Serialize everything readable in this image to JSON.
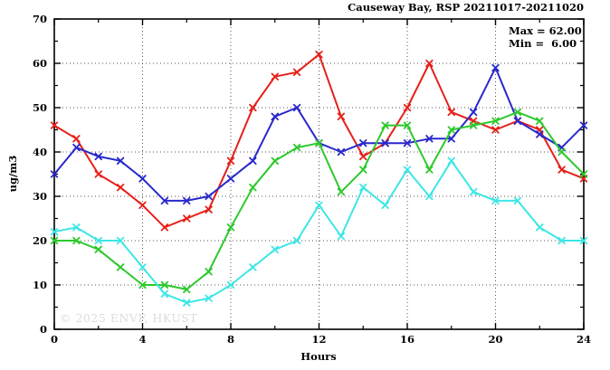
{
  "title": "Causeway Bay, RSP 20211017-20211020",
  "stats": {
    "max_label": "Max = 62.00",
    "min_label": "Min =  6.00"
  },
  "watermark": "© 2025 ENVF, HKUST",
  "chart_data": {
    "type": "line",
    "title": "Causeway Bay, RSP 20211017-20211020",
    "xlabel": "Hours",
    "ylabel": "ug/m3",
    "xlim": [
      0,
      24
    ],
    "ylim": [
      0,
      70
    ],
    "xticks": [
      0,
      4,
      8,
      12,
      16,
      20,
      24
    ],
    "xminorticks": [
      2,
      6,
      10,
      14,
      18,
      22
    ],
    "yticks": [
      0,
      10,
      20,
      30,
      40,
      50,
      60,
      70
    ],
    "yminorticks": [
      5,
      15,
      25,
      35,
      45,
      55,
      65
    ],
    "grid": true,
    "marker": "x",
    "annotations": {
      "max": 62.0,
      "min": 6.0
    },
    "x": [
      0,
      1,
      2,
      3,
      4,
      5,
      6,
      7,
      8,
      9,
      10,
      11,
      12,
      13,
      14,
      15,
      16,
      17,
      18,
      19,
      20,
      21,
      22,
      23,
      24
    ],
    "series": [
      {
        "name": "red",
        "color": "#e62019",
        "values": [
          46,
          43,
          35,
          32,
          28,
          23,
          25,
          27,
          38,
          50,
          57,
          58,
          62,
          48,
          39,
          42,
          50,
          60,
          49,
          47,
          45,
          47,
          45,
          36,
          34
        ]
      },
      {
        "name": "blue",
        "color": "#2828cc",
        "values": [
          35,
          41,
          39,
          38,
          34,
          29,
          29,
          30,
          34,
          38,
          48,
          50,
          42,
          40,
          42,
          42,
          42,
          43,
          43,
          49,
          59,
          47,
          44,
          41,
          46
        ]
      },
      {
        "name": "green",
        "color": "#2cc92c",
        "values": [
          20,
          20,
          18,
          14,
          10,
          10,
          9,
          13,
          23,
          32,
          38,
          41,
          42,
          31,
          36,
          46,
          46,
          36,
          45,
          46,
          47,
          49,
          47,
          40,
          35
        ]
      },
      {
        "name": "cyan",
        "color": "#3de6e6",
        "values": [
          22,
          23,
          20,
          20,
          14,
          8,
          6,
          7,
          10,
          14,
          18,
          20,
          28,
          21,
          32,
          28,
          36,
          30,
          38,
          31,
          29,
          29,
          23,
          20,
          20
        ]
      }
    ]
  }
}
